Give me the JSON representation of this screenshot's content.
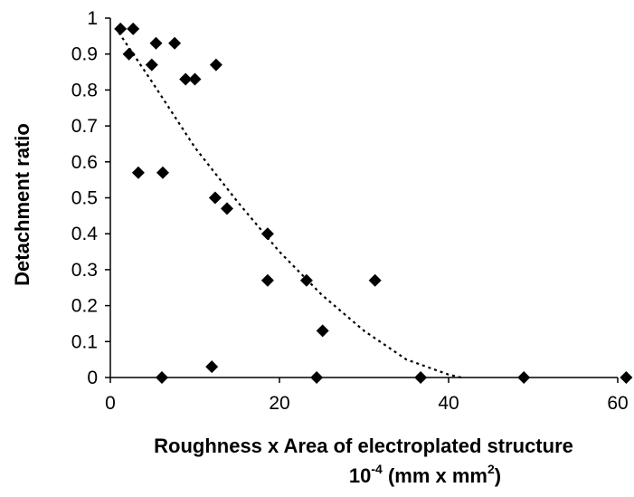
{
  "chart_data": {
    "type": "scatter",
    "title": "",
    "xlabel": "Roughness x Area of electroplated structure",
    "xlabel_line2": {
      "pre": "10",
      "sup1": "-4",
      "mid": " (mm x mm",
      "sup2": "2",
      "post": ")"
    },
    "ylabel": "Detachment ratio",
    "xlim": [
      0,
      60
    ],
    "ylim": [
      0,
      1
    ],
    "xticks": [
      0,
      20,
      40,
      60
    ],
    "yticks": [
      0,
      0.1,
      0.2,
      0.3,
      0.4,
      0.5,
      0.6,
      0.7,
      0.8,
      0.9,
      1
    ],
    "xtick_labels": [
      "0",
      "20",
      "40",
      "60"
    ],
    "ytick_labels": [
      "0",
      "0.1",
      "0.2",
      "0.3",
      "0.4",
      "0.5",
      "0.6",
      "0.7",
      "0.8",
      "0.9",
      "1"
    ],
    "grid": false,
    "marker": "diamond",
    "marker_color": "#000000",
    "points": [
      {
        "x": 1.2,
        "y": 0.97
      },
      {
        "x": 2.7,
        "y": 0.97
      },
      {
        "x": 2.2,
        "y": 0.9
      },
      {
        "x": 5.4,
        "y": 0.93
      },
      {
        "x": 7.6,
        "y": 0.93
      },
      {
        "x": 4.9,
        "y": 0.87
      },
      {
        "x": 8.9,
        "y": 0.83
      },
      {
        "x": 10.0,
        "y": 0.83
      },
      {
        "x": 12.5,
        "y": 0.87
      },
      {
        "x": 3.3,
        "y": 0.57
      },
      {
        "x": 6.2,
        "y": 0.57
      },
      {
        "x": 12.4,
        "y": 0.5
      },
      {
        "x": 13.8,
        "y": 0.47
      },
      {
        "x": 18.6,
        "y": 0.4
      },
      {
        "x": 18.6,
        "y": 0.27
      },
      {
        "x": 23.2,
        "y": 0.27
      },
      {
        "x": 31.3,
        "y": 0.27
      },
      {
        "x": 25.1,
        "y": 0.13
      },
      {
        "x": 12.0,
        "y": 0.03
      },
      {
        "x": 6.1,
        "y": 0.0
      },
      {
        "x": 24.4,
        "y": 0.0
      },
      {
        "x": 36.7,
        "y": 0.0
      },
      {
        "x": 48.9,
        "y": 0.0
      },
      {
        "x": 61.0,
        "y": 0.0
      }
    ],
    "trendline": {
      "style": "dotted",
      "color": "#000000",
      "x": [
        1,
        5,
        10,
        15,
        20,
        25,
        30,
        35,
        40,
        41.5
      ],
      "y": [
        0.96,
        0.82,
        0.64,
        0.49,
        0.35,
        0.23,
        0.13,
        0.05,
        0.008,
        0.0
      ]
    }
  }
}
